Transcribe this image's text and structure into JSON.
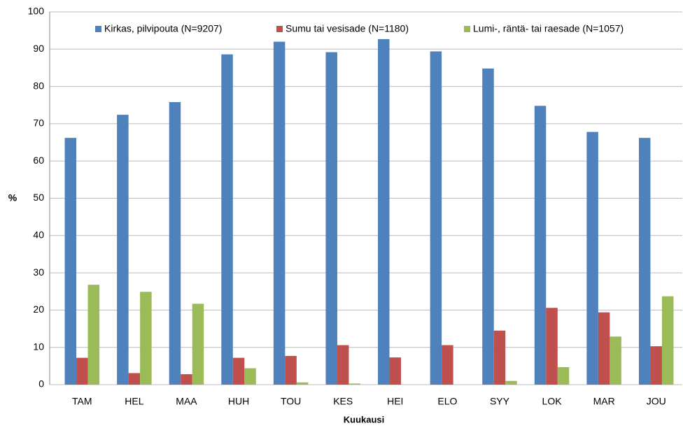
{
  "chart_data": {
    "type": "bar",
    "x_label": "Kuukausi",
    "y_label": "%",
    "categories": [
      "TAM",
      "HEL",
      "MAA",
      "HUH",
      "TOU",
      "KES",
      "HEI",
      "ELO",
      "SYY",
      "LOK",
      "MAR",
      "JOU"
    ],
    "series": [
      {
        "name": "Kirkas, pilvipouta (N=9207)",
        "color": "#4f81bd",
        "values": [
          66.2,
          72.4,
          75.8,
          88.6,
          92.0,
          89.2,
          92.7,
          89.4,
          84.8,
          74.8,
          67.8,
          66.2
        ]
      },
      {
        "name": "Sumu tai  vesisade (N=1180)",
        "color": "#c0504d",
        "values": [
          7.2,
          3.1,
          2.8,
          7.2,
          7.7,
          10.6,
          7.3,
          10.6,
          14.5,
          20.6,
          19.4,
          10.3
        ]
      },
      {
        "name": "Lumi-, räntä- tai raesade (N=1057)",
        "color": "#9bbb59",
        "values": [
          26.8,
          24.9,
          21.7,
          4.4,
          0.6,
          0.3,
          0,
          0,
          1.0,
          4.7,
          12.9,
          23.7
        ]
      }
    ],
    "ylim": [
      0,
      100
    ],
    "yticks": [
      0,
      10,
      20,
      30,
      40,
      50,
      60,
      70,
      80,
      90,
      100
    ],
    "grid": true,
    "legend": "top"
  }
}
